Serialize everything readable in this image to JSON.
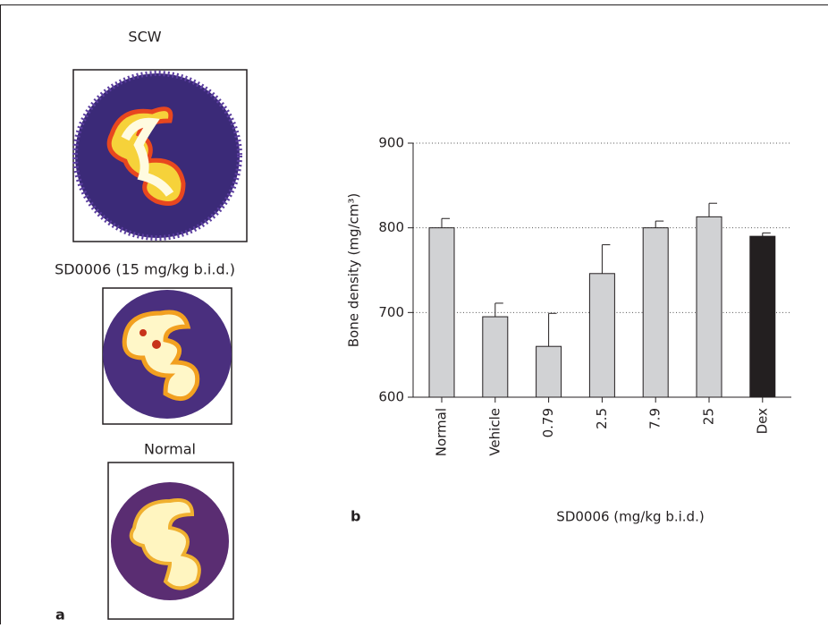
{
  "panel_a": {
    "label": "a",
    "images": [
      {
        "title": "SCW"
      },
      {
        "title": "SD0006 (15 mg/kg b.i.d.)"
      },
      {
        "title": "Normal"
      }
    ]
  },
  "chart_data": {
    "type": "bar",
    "panel_label": "b",
    "ylabel": "Bone density (mg/cm³)",
    "xlabel": "SD0006 (mg/kg b.i.d.)",
    "categories": [
      "Normal",
      "Vehicle",
      "0.79",
      "2.5",
      "7.9",
      "25",
      "Dex"
    ],
    "values": [
      800,
      695,
      660,
      746,
      800,
      813,
      790
    ],
    "errors": [
      11,
      16,
      39,
      34,
      8,
      16,
      4
    ],
    "colors": [
      "#d1d2d4",
      "#d1d2d4",
      "#d1d2d4",
      "#d1d2d4",
      "#d1d2d4",
      "#d1d2d4",
      "#231f20"
    ],
    "ylim": [
      600,
      900
    ],
    "yticks": [
      600,
      700,
      800,
      900
    ],
    "grid": true
  }
}
